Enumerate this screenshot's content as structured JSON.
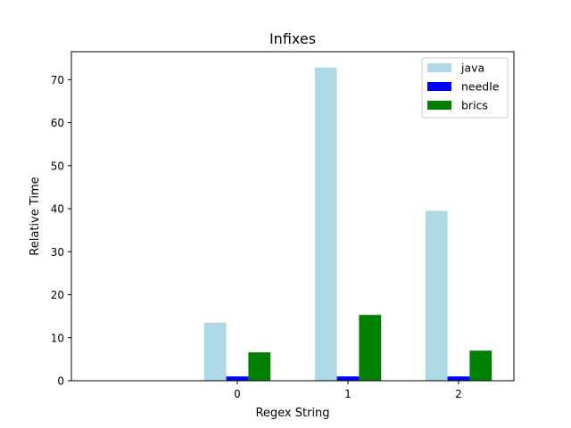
{
  "chart_data": {
    "type": "bar",
    "title": "Infixes",
    "xlabel": "Regex String",
    "ylabel": "Relative Time",
    "categories": [
      "0",
      "1",
      "2"
    ],
    "xlim": [
      -1.5,
      2.5
    ],
    "ylim": [
      0,
      76.5
    ],
    "yticks": [
      0,
      10,
      20,
      30,
      40,
      50,
      60,
      70
    ],
    "grid": false,
    "legend_position": "top-right",
    "series": [
      {
        "name": "java",
        "color": "#add8e6",
        "values": [
          13.5,
          72.8,
          39.5
        ]
      },
      {
        "name": "needle",
        "color": "#0000ff",
        "values": [
          1.0,
          1.0,
          1.0
        ]
      },
      {
        "name": "brics",
        "color": "#008000",
        "values": [
          6.6,
          15.3,
          7.0
        ]
      }
    ]
  }
}
